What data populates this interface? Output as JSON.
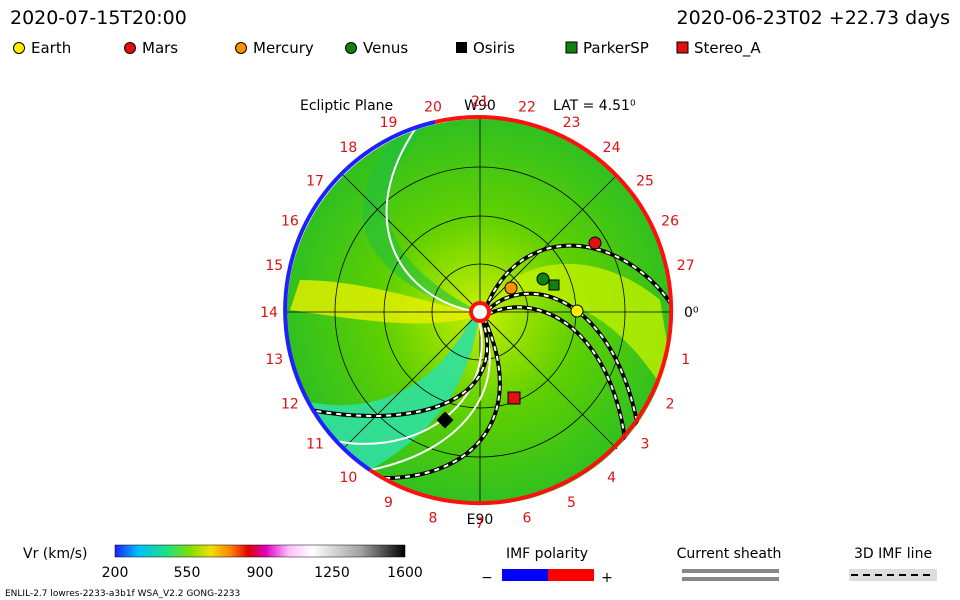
{
  "header": {
    "left": "2020-07-15T20:00",
    "right": "2020-06-23T02 +22.73 days"
  },
  "legend": [
    "Earth",
    "Mars",
    "Mercury",
    "Venus",
    "Osiris",
    "ParkerSP",
    "Stereo_A"
  ],
  "plot": {
    "title": "Ecliptic Plane",
    "top_label": "W90",
    "bottom_label": "E90",
    "lat": "LAT = 4.51⁰",
    "zero_label": "0⁰",
    "longitude_labels": [
      "1",
      "2",
      "3",
      "4",
      "5",
      "6",
      "7",
      "8",
      "9",
      "10",
      "11",
      "12",
      "13",
      "14",
      "15",
      "16",
      "17",
      "18",
      "19",
      "20",
      "21",
      "22",
      "23",
      "24",
      "25",
      "26",
      "27"
    ]
  },
  "colorbar": {
    "title": "Vr (km/s)",
    "ticks": [
      "200",
      "550",
      "900",
      "1250",
      "1600"
    ]
  },
  "imf": {
    "title": "IMF polarity",
    "minus": "−",
    "plus": "+"
  },
  "sheath": {
    "title": "Current sheath"
  },
  "field_line": {
    "title": "3D IMF line"
  },
  "footer": "ENLIL-2.7 lowres-2233-a3b1f WSA_V2.2 GONG-2233"
}
